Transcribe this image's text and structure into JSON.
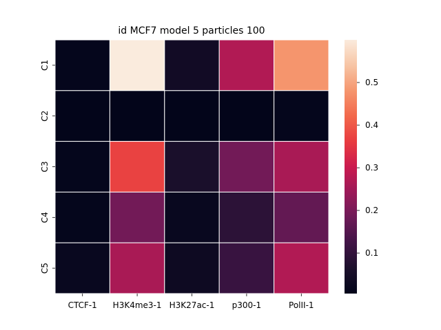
{
  "chart_data": {
    "type": "heatmap",
    "title": "id MCF7 model 5 particles 100",
    "xlabel": "",
    "ylabel": "",
    "x_categories": [
      "CTCF-1",
      "H3K4me3-1",
      "H3K27ac-1",
      "p300-1",
      "PolII-1"
    ],
    "y_categories": [
      "C1",
      "C2",
      "C3",
      "C4",
      "C5"
    ],
    "values": [
      [
        0.01,
        0.6,
        0.04,
        0.27,
        0.48
      ],
      [
        0.005,
        0.005,
        0.005,
        0.005,
        0.01
      ],
      [
        0.01,
        0.37,
        0.06,
        0.19,
        0.26
      ],
      [
        0.01,
        0.19,
        0.02,
        0.09,
        0.17
      ],
      [
        0.02,
        0.26,
        0.03,
        0.11,
        0.27
      ]
    ],
    "colorbar": {
      "min": 0.005,
      "max": 0.6,
      "ticks": [
        0.1,
        0.2,
        0.3,
        0.4,
        0.5
      ],
      "tick_labels": [
        "0.1",
        "0.2",
        "0.3",
        "0.4",
        "0.5"
      ]
    },
    "colormap": "rocket",
    "cell_borders": "#ffffff",
    "grid": false,
    "legend": "colorbar-right"
  }
}
